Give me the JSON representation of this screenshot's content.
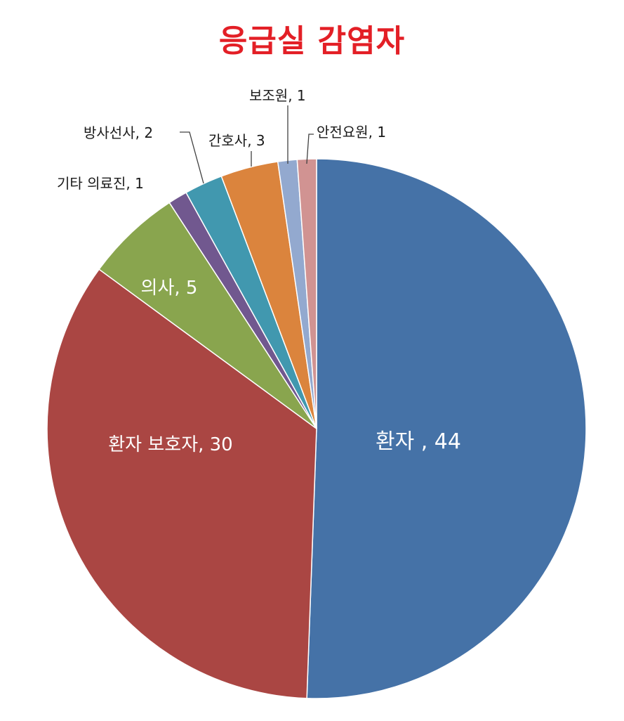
{
  "chart_data": {
    "type": "pie",
    "title": "응급실 감염자",
    "categories": [
      "환자",
      "환자 보호자",
      "의사",
      "기타 의료진",
      "방사선사",
      "간호사",
      "보조원",
      "안전요원"
    ],
    "values": [
      44,
      30,
      5,
      1,
      2,
      3,
      1,
      1
    ],
    "data_labels": [
      "환자 , 44",
      "환자 보호자, 30",
      "의사, 5",
      "기타 의료진, 1",
      "방사선사, 2",
      "간호사, 3",
      "보조원, 1",
      "안전요원, 1"
    ],
    "colors": [
      "#4572a7",
      "#aa4643",
      "#89a54e",
      "#71588f",
      "#4198af",
      "#db843d",
      "#93a9cf",
      "#d19392"
    ],
    "start": "12 o'clock",
    "direction": "clockwise",
    "legend": "none"
  }
}
